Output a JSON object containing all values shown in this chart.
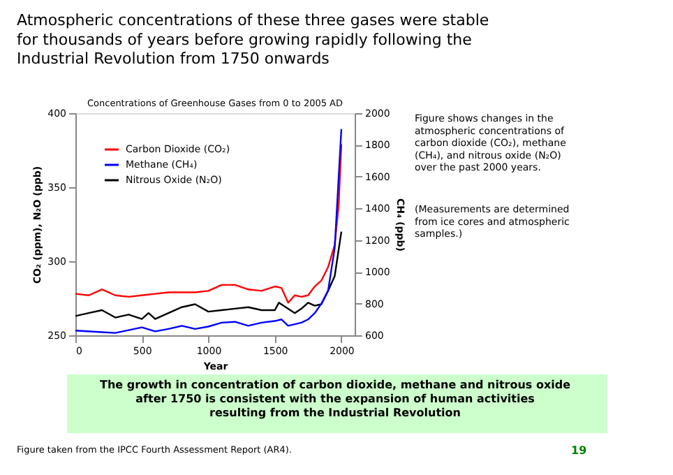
{
  "chart_data": {
    "type": "line",
    "title": "Atmospheric concentrations of these three gases were stable for thousands of years before growing rapidly following the Industrial Revolution from 1750 onwards",
    "subtitle": "Concentrations of Greenhouse Gases from 0 to 2005 AD",
    "xlabel": "Year",
    "ylabel": "CO₂ (ppm), N₂O (ppb)",
    "y2label": "CH₄ (ppb)",
    "xlim": [
      0,
      2100
    ],
    "xticks": [
      0,
      500,
      1000,
      1500,
      2000
    ],
    "ylim": [
      250,
      400
    ],
    "yticks": [
      250,
      300,
      350,
      400
    ],
    "y2lim": [
      600,
      2000
    ],
    "y2ticks": [
      600,
      800,
      1000,
      1200,
      1400,
      1600,
      1800,
      2000
    ],
    "grid": false,
    "legend": "top left",
    "marker": "none",
    "line_style": "solid",
    "series": [
      {
        "name": "Carbon Dioxide (CO₂)",
        "color": "#ff0000",
        "x": [
          0,
          100,
          200,
          300,
          400,
          500,
          600,
          700,
          800,
          900,
          1000,
          1100,
          1200,
          1300,
          1400,
          1500,
          1550,
          1600,
          1650,
          1700,
          1750,
          1800,
          1850,
          1900,
          1950,
          1980,
          2000
        ],
        "values": [
          278,
          277,
          281,
          277,
          276,
          277,
          278,
          279,
          279,
          279,
          280,
          284,
          284,
          281,
          280,
          283,
          282,
          272,
          277,
          276,
          277,
          283,
          287,
          296,
          311,
          338,
          379
        ]
      },
      {
        "name": "Methane (CH₄)",
        "color": "#0000ff",
        "axis": "y2",
        "x": [
          0,
          200,
          300,
          500,
          600,
          700,
          800,
          900,
          1000,
          1100,
          1200,
          1300,
          1400,
          1500,
          1550,
          1600,
          1700,
          1750,
          1800,
          1850,
          1900,
          1950,
          1980,
          2000
        ],
        "values": [
          630,
          620,
          615,
          650,
          625,
          640,
          660,
          640,
          655,
          680,
          685,
          660,
          680,
          690,
          700,
          660,
          680,
          700,
          740,
          800,
          880,
          1150,
          1600,
          1900
        ]
      },
      {
        "name": "Nitrous Oxide (N₂O)",
        "color": "#000000",
        "x": [
          0,
          100,
          200,
          300,
          400,
          500,
          550,
          600,
          700,
          800,
          900,
          1000,
          1100,
          1200,
          1300,
          1400,
          1500,
          1530,
          1650,
          1700,
          1750,
          1800,
          1850,
          1900,
          1950,
          2000
        ],
        "values": [
          263,
          265,
          267,
          262,
          264,
          261,
          265,
          261,
          265,
          269,
          271,
          266,
          267,
          268,
          269,
          267,
          267,
          272,
          265,
          268,
          272,
          270,
          271,
          280,
          290,
          320
        ]
      }
    ],
    "annotations": [
      "Figure shows changes in the atmospheric concentrations of carbon dioxide (CO₂), methane (CH₄), and nitrous oxide (N₂O) over the past 2000 years.",
      "(Measurements are determined from ice cores and atmospheric samples.)",
      "The growth in concentration of carbon dioxide, methane and nitrous oxide after 1750 is consistent with the expansion of human activities resulting from the Industrial Revolution",
      "Figure taken from the IPCC Fourth Assessment Report (AR4).",
      "19"
    ]
  }
}
